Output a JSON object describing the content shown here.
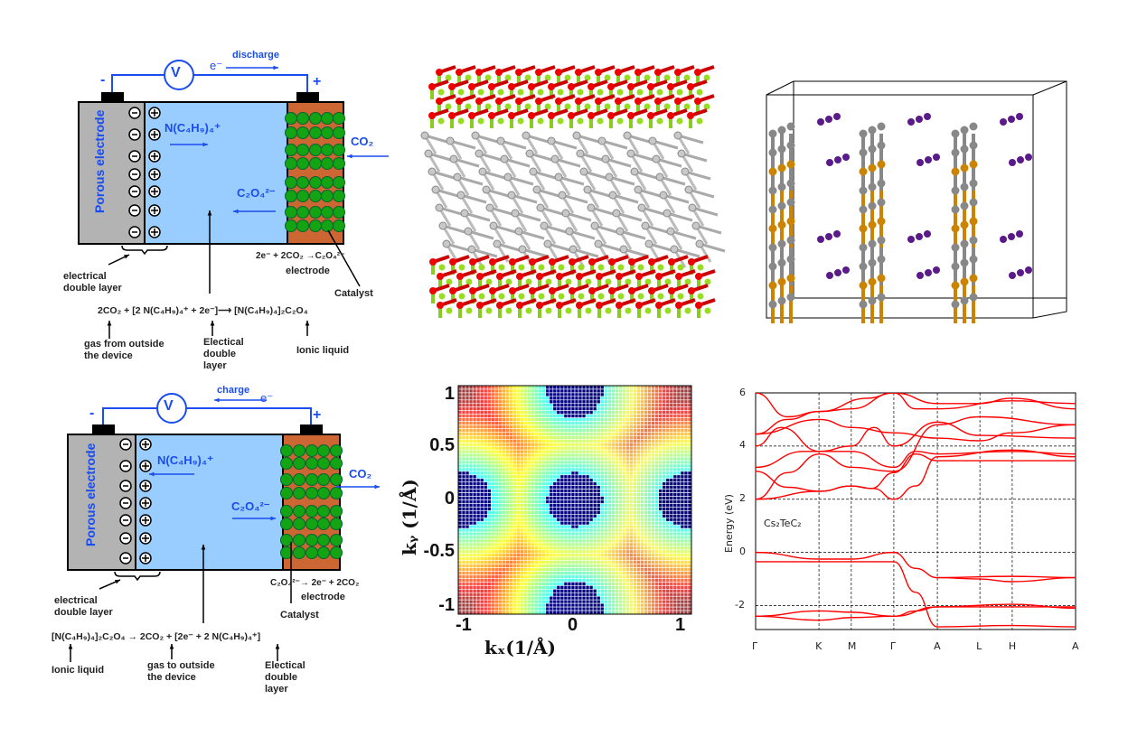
{
  "panel_discharge": {
    "minus": "-",
    "plus": "+",
    "electron": "e⁻",
    "direction": "discharge",
    "voltmeter": "V",
    "electrode_label": "Porous electrode",
    "cation": "N(C₄H₉)₄⁺",
    "gas": "CO₂",
    "anion": "C₂O₄²⁻",
    "edl_label": "electrical\ndouble layer",
    "electrode_reaction": "2e⁻ + 2CO₂ →C₂O₄²⁻",
    "electrode_word": "electrode",
    "catalyst": "Catalyst",
    "equation": "2CO₂ + [2 N(C₄H₉)₄⁺ + 2e⁻]⟶ [N(C₄H₉)₄]₂C₂O₄",
    "label_gas": "gas from outside\nthe device",
    "label_edl": "Electical\ndouble\nlayer",
    "label_ionic": "Ionic liquid"
  },
  "panel_charge": {
    "minus": "-",
    "plus": "+",
    "electron": "e⁻",
    "direction": "charge",
    "voltmeter": "V",
    "electrode_label": "Porous electrode",
    "cation": "N(C₄H₉)₄⁺",
    "gas": "CO₂",
    "anion": "C₂O₄²⁻",
    "edl_label": "electrical\ndouble layer",
    "electrode_reaction": "C₂O₄²⁻→ 2e⁻ + 2CO₂",
    "electrode_word": "electrode",
    "catalyst": "Catalyst",
    "equation": "[N(C₄H₉)₄]₂C₂O₄ → 2CO₂ + [2e⁻ + 2 N(C₄H₉)₄⁺]",
    "label_ionic": "Ionic liquid",
    "label_gas": "gas to outside\nthe device",
    "label_edl": "Electical\ndouble\nlayer"
  },
  "colors": {
    "blue": "#1a4cf0",
    "electrolyte": "#99ccff",
    "electrode": "#b3b3b3",
    "catalyst_bg": "#cc6633",
    "catalyst_ball": "#13a313",
    "band": "#ff0000",
    "atom_gray": "#888888",
    "atom_orange": "#cc8400",
    "atom_purple": "#5a1a8a"
  },
  "chart_data": [
    {
      "type": "heatmap",
      "title": "",
      "xlabel": "kₓ(1/Å)",
      "ylabel": "kᵧ (1/Å)",
      "xlim": [
        -1.05,
        1.05
      ],
      "ylim": [
        -1.05,
        1.05
      ],
      "xticks": [
        "-1",
        "0",
        "1"
      ],
      "yticks": [
        "1",
        "0.5",
        "0",
        "-0.5",
        "-1"
      ],
      "xtick_values": [
        -1,
        0,
        1
      ],
      "ytick_values": [
        1,
        0.5,
        0,
        -0.5,
        -1
      ],
      "minima": [
        [
          0,
          0
        ],
        [
          1,
          0
        ],
        [
          -1,
          0
        ],
        [
          0,
          1
        ],
        [
          0,
          -1
        ]
      ],
      "colormap": "jet"
    },
    {
      "type": "line",
      "title": "",
      "ylabel": "Energy (eV)",
      "annotation": "Cs₂TeC₂",
      "ylim": [
        -2.9,
        6
      ],
      "yticks": [
        "6",
        "4",
        "2",
        "0",
        "-2"
      ],
      "ytick_values": [
        6,
        4,
        2,
        0,
        -2
      ],
      "kpoints": [
        {
          "label": "Γ",
          "pos": 0
        },
        {
          "label": "K",
          "pos": 0.198
        },
        {
          "label": "M",
          "pos": 0.299
        },
        {
          "label": "Γ",
          "pos": 0.432
        },
        {
          "label": "A",
          "pos": 0.568
        },
        {
          "label": "L",
          "pos": 0.701
        },
        {
          "label": "H",
          "pos": 0.802
        },
        {
          "label": "A",
          "pos": 1
        }
      ],
      "grid": true,
      "series": [
        {
          "name": "band1",
          "points": [
            [
              0,
              0
            ],
            [
              0.2,
              -0.25
            ],
            [
              0.3,
              -0.25
            ],
            [
              0.432,
              0
            ],
            [
              0.5,
              -0.6
            ],
            [
              0.568,
              -0.95
            ],
            [
              0.7,
              -1.0
            ],
            [
              0.8,
              -1.1
            ],
            [
              1,
              -0.95
            ]
          ]
        },
        {
          "name": "band2",
          "points": [
            [
              0,
              -0.35
            ],
            [
              0.432,
              -0.35
            ],
            [
              0.5,
              -1.5
            ],
            [
              0.568,
              -2.8
            ],
            [
              0.8,
              -2.75
            ],
            [
              1,
              -2.8
            ]
          ]
        },
        {
          "name": "band3",
          "points": [
            [
              0,
              -2.4
            ],
            [
              0.2,
              -2.2
            ],
            [
              0.3,
              -2.25
            ],
            [
              0.432,
              -2.4
            ],
            [
              0.568,
              -2.05
            ],
            [
              0.8,
              -2.05
            ],
            [
              1,
              -2.05
            ]
          ]
        },
        {
          "name": "band4",
          "points": [
            [
              0,
              -2.4
            ],
            [
              0.2,
              -2.55
            ],
            [
              0.3,
              -2.45
            ],
            [
              0.432,
              -2.4
            ],
            [
              0.5,
              -2.2
            ],
            [
              0.568,
              -2.05
            ],
            [
              0.8,
              -1.95
            ],
            [
              1,
              -2.1
            ]
          ]
        },
        {
          "name": "band5",
          "points": [
            [
              0.568,
              -0.95
            ],
            [
              0.8,
              -0.9
            ],
            [
              1,
              -0.95
            ]
          ]
        },
        {
          "name": "band6",
          "points": [
            [
              0,
              2
            ],
            [
              0.2,
              2.3
            ],
            [
              0.3,
              2.5
            ],
            [
              0.36,
              2.4
            ],
            [
              0.432,
              3.0
            ],
            [
              0.5,
              3.7
            ],
            [
              0.568,
              3.45
            ],
            [
              1,
              3.45
            ]
          ]
        },
        {
          "name": "band7",
          "points": [
            [
              0,
              3.05
            ],
            [
              0.1,
              2.45
            ],
            [
              0.2,
              2.3
            ],
            [
              0.3,
              2.5
            ],
            [
              0.37,
              2.4
            ],
            [
              0.432,
              2.0
            ],
            [
              0.5,
              2.5
            ],
            [
              0.568,
              3.6
            ],
            [
              0.8,
              3.85
            ],
            [
              1,
              3.6
            ]
          ]
        },
        {
          "name": "band8",
          "points": [
            [
              0,
              2
            ],
            [
              0.1,
              3.0
            ],
            [
              0.2,
              3.7
            ],
            [
              0.3,
              3.2
            ],
            [
              0.432,
              3.05
            ],
            [
              0.568,
              4.8
            ],
            [
              0.7,
              5.1
            ],
            [
              1,
              4.8
            ]
          ]
        },
        {
          "name": "band9",
          "points": [
            [
              0,
              3.2
            ],
            [
              0.15,
              3.8
            ],
            [
              0.3,
              3.8
            ],
            [
              0.432,
              3.2
            ],
            [
              0.5,
              3.8
            ],
            [
              0.568,
              3.7
            ],
            [
              0.8,
              3.8
            ],
            [
              1,
              3.7
            ]
          ]
        },
        {
          "name": "band10",
          "points": [
            [
              0,
              4.0
            ],
            [
              0.08,
              4.7
            ],
            [
              0.2,
              3.8
            ],
            [
              0.3,
              4.0
            ],
            [
              0.37,
              4.7
            ],
            [
              0.432,
              4.0
            ],
            [
              0.568,
              4.9
            ],
            [
              0.7,
              4.4
            ],
            [
              1,
              4.3
            ]
          ]
        },
        {
          "name": "band11",
          "points": [
            [
              0,
              4.45
            ],
            [
              0.2,
              5.0
            ],
            [
              0.3,
              4.7
            ],
            [
              0.432,
              4.5
            ],
            [
              0.568,
              4.3
            ],
            [
              0.7,
              4.2
            ],
            [
              0.8,
              4.5
            ],
            [
              1,
              4.8
            ]
          ]
        },
        {
          "name": "band12",
          "points": [
            [
              0,
              6
            ],
            [
              0.1,
              5.1
            ],
            [
              0.2,
              5.3
            ],
            [
              0.3,
              5.4
            ],
            [
              0.432,
              6
            ],
            [
              0.5,
              5.4
            ],
            [
              0.568,
              5.4
            ],
            [
              0.8,
              5.7
            ],
            [
              1,
              5.6
            ]
          ]
        },
        {
          "name": "band13",
          "points": [
            [
              0,
              4.45
            ],
            [
              0.1,
              5.0
            ],
            [
              0.2,
              5.3
            ],
            [
              0.35,
              5.8
            ],
            [
              0.432,
              6
            ]
          ]
        },
        {
          "name": "band14",
          "points": [
            [
              0.432,
              6
            ],
            [
              0.568,
              5.6
            ],
            [
              0.7,
              5.6
            ],
            [
              0.8,
              5.8
            ],
            [
              1,
              5.4
            ]
          ]
        }
      ]
    }
  ]
}
